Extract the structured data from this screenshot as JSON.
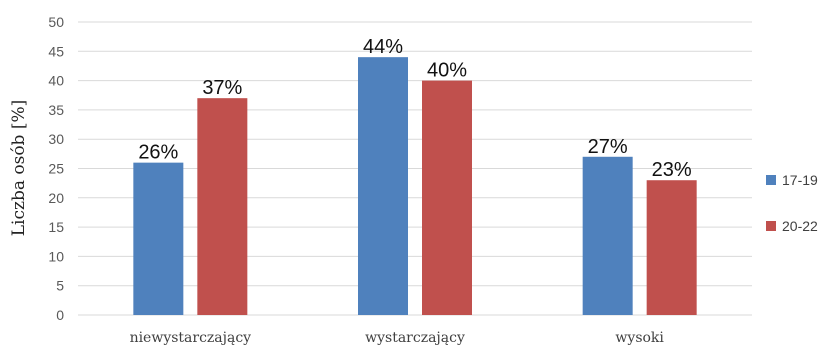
{
  "chart_data": {
    "type": "bar",
    "categories": [
      "niewystarczający",
      "wystarczający",
      "wysoki"
    ],
    "series": [
      {
        "name": "17-19",
        "color": "#4f81bd",
        "values": [
          26,
          44,
          27
        ],
        "labels": [
          "26%",
          "44%",
          "27%"
        ]
      },
      {
        "name": "20-22",
        "color": "#c0504d",
        "values": [
          37,
          40,
          23
        ],
        "labels": [
          "37%",
          "40%",
          "23%"
        ]
      }
    ],
    "title": "",
    "xlabel": "",
    "ylabel": "Liczba osób [%]",
    "ylim": [
      0,
      50
    ],
    "yticks": [
      "0",
      "5",
      "10",
      "15",
      "20",
      "25",
      "30",
      "35",
      "40",
      "45",
      "50"
    ],
    "grid": true,
    "legend_position": "right"
  }
}
